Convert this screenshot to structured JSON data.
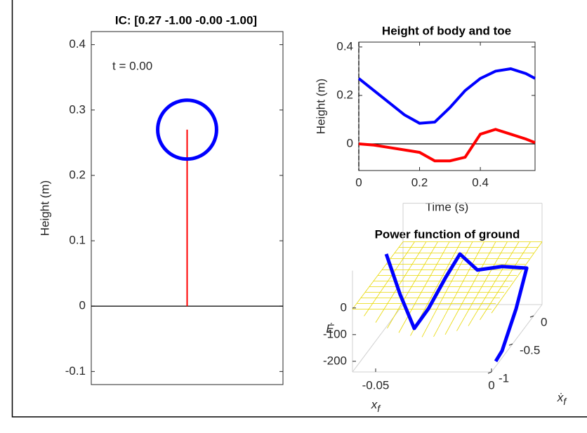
{
  "chart_data": [
    {
      "type": "line",
      "title": "IC: [0.27 -1.00 -0.00 -1.00]",
      "ylabel": "Height (m)",
      "annotation": "t = 0.00",
      "xlim": [
        -1,
        1
      ],
      "ylim": [
        -0.12,
        0.42
      ],
      "yticks": [
        -0.1,
        0,
        0.1,
        0.2,
        0.3,
        0.4
      ],
      "hline": 0,
      "series": [
        {
          "color": "#ff0000",
          "x": [
            0,
            0
          ],
          "values": [
            0,
            0.27
          ]
        }
      ],
      "marker": {
        "x": 0,
        "y": 0.27,
        "radius": 0.045,
        "color": "#0000ff"
      }
    },
    {
      "type": "line",
      "title": "Height of body and toe",
      "xlabel": "Time (s)",
      "ylabel": "Height (m)",
      "xlim": [
        0,
        0.58
      ],
      "ylim": [
        -0.11,
        0.42
      ],
      "xticks": [
        0,
        0.2,
        0.4
      ],
      "yticks": [
        0,
        0.2,
        0.4
      ],
      "hline": 0,
      "vline": 0,
      "series": [
        {
          "color": "#0000ff",
          "x": [
            0,
            0.05,
            0.1,
            0.15,
            0.2,
            0.25,
            0.3,
            0.35,
            0.4,
            0.45,
            0.5,
            0.55,
            0.58
          ],
          "values": [
            0.27,
            0.22,
            0.17,
            0.12,
            0.085,
            0.09,
            0.15,
            0.22,
            0.27,
            0.3,
            0.31,
            0.29,
            0.27
          ]
        },
        {
          "color": "#ff0000",
          "x": [
            0,
            0.05,
            0.1,
            0.15,
            0.2,
            0.25,
            0.3,
            0.35,
            0.4,
            0.45,
            0.5,
            0.55,
            0.58
          ],
          "values": [
            0,
            -0.005,
            -0.015,
            -0.025,
            -0.035,
            -0.07,
            -0.07,
            -0.055,
            0.04,
            0.06,
            0.04,
            0.02,
            0.005
          ]
        }
      ]
    },
    {
      "type": "line3d",
      "title": "Power function of ground",
      "xlabel": {
        "base": "x",
        "sub": "f"
      },
      "ylabel": {
        "base": "ẋ",
        "sub": "f"
      },
      "zlabel": {
        "base": "Ė"
      },
      "xlim": [
        -0.06,
        0
      ],
      "ylim": [
        -1,
        0.2
      ],
      "zlim": [
        -240,
        140
      ],
      "xticks": [
        -0.05,
        0
      ],
      "yticks": [
        -1,
        -0.5,
        0
      ],
      "zticks": [
        -200,
        -100,
        0
      ],
      "trajectory": {
        "color": "#0000ff",
        "x": [
          -0.0527,
          -0.0467,
          -0.0406,
          -0.0345,
          -0.027,
          -0.0209,
          -0.017,
          -0.01,
          -0.003,
          -0.0021,
          -0.0009,
          0
        ],
        "y": [
          -0.6,
          -0.6,
          -0.6,
          -0.6,
          -0.6,
          -0.6,
          -0.4,
          -0.2,
          0,
          -0.3,
          -0.7,
          -0.9
        ],
        "z": [
          118,
          -34,
          -161,
          -87,
          31,
          118,
          16,
          -13,
          -61,
          -150,
          -224,
          -221
        ]
      }
    }
  ]
}
